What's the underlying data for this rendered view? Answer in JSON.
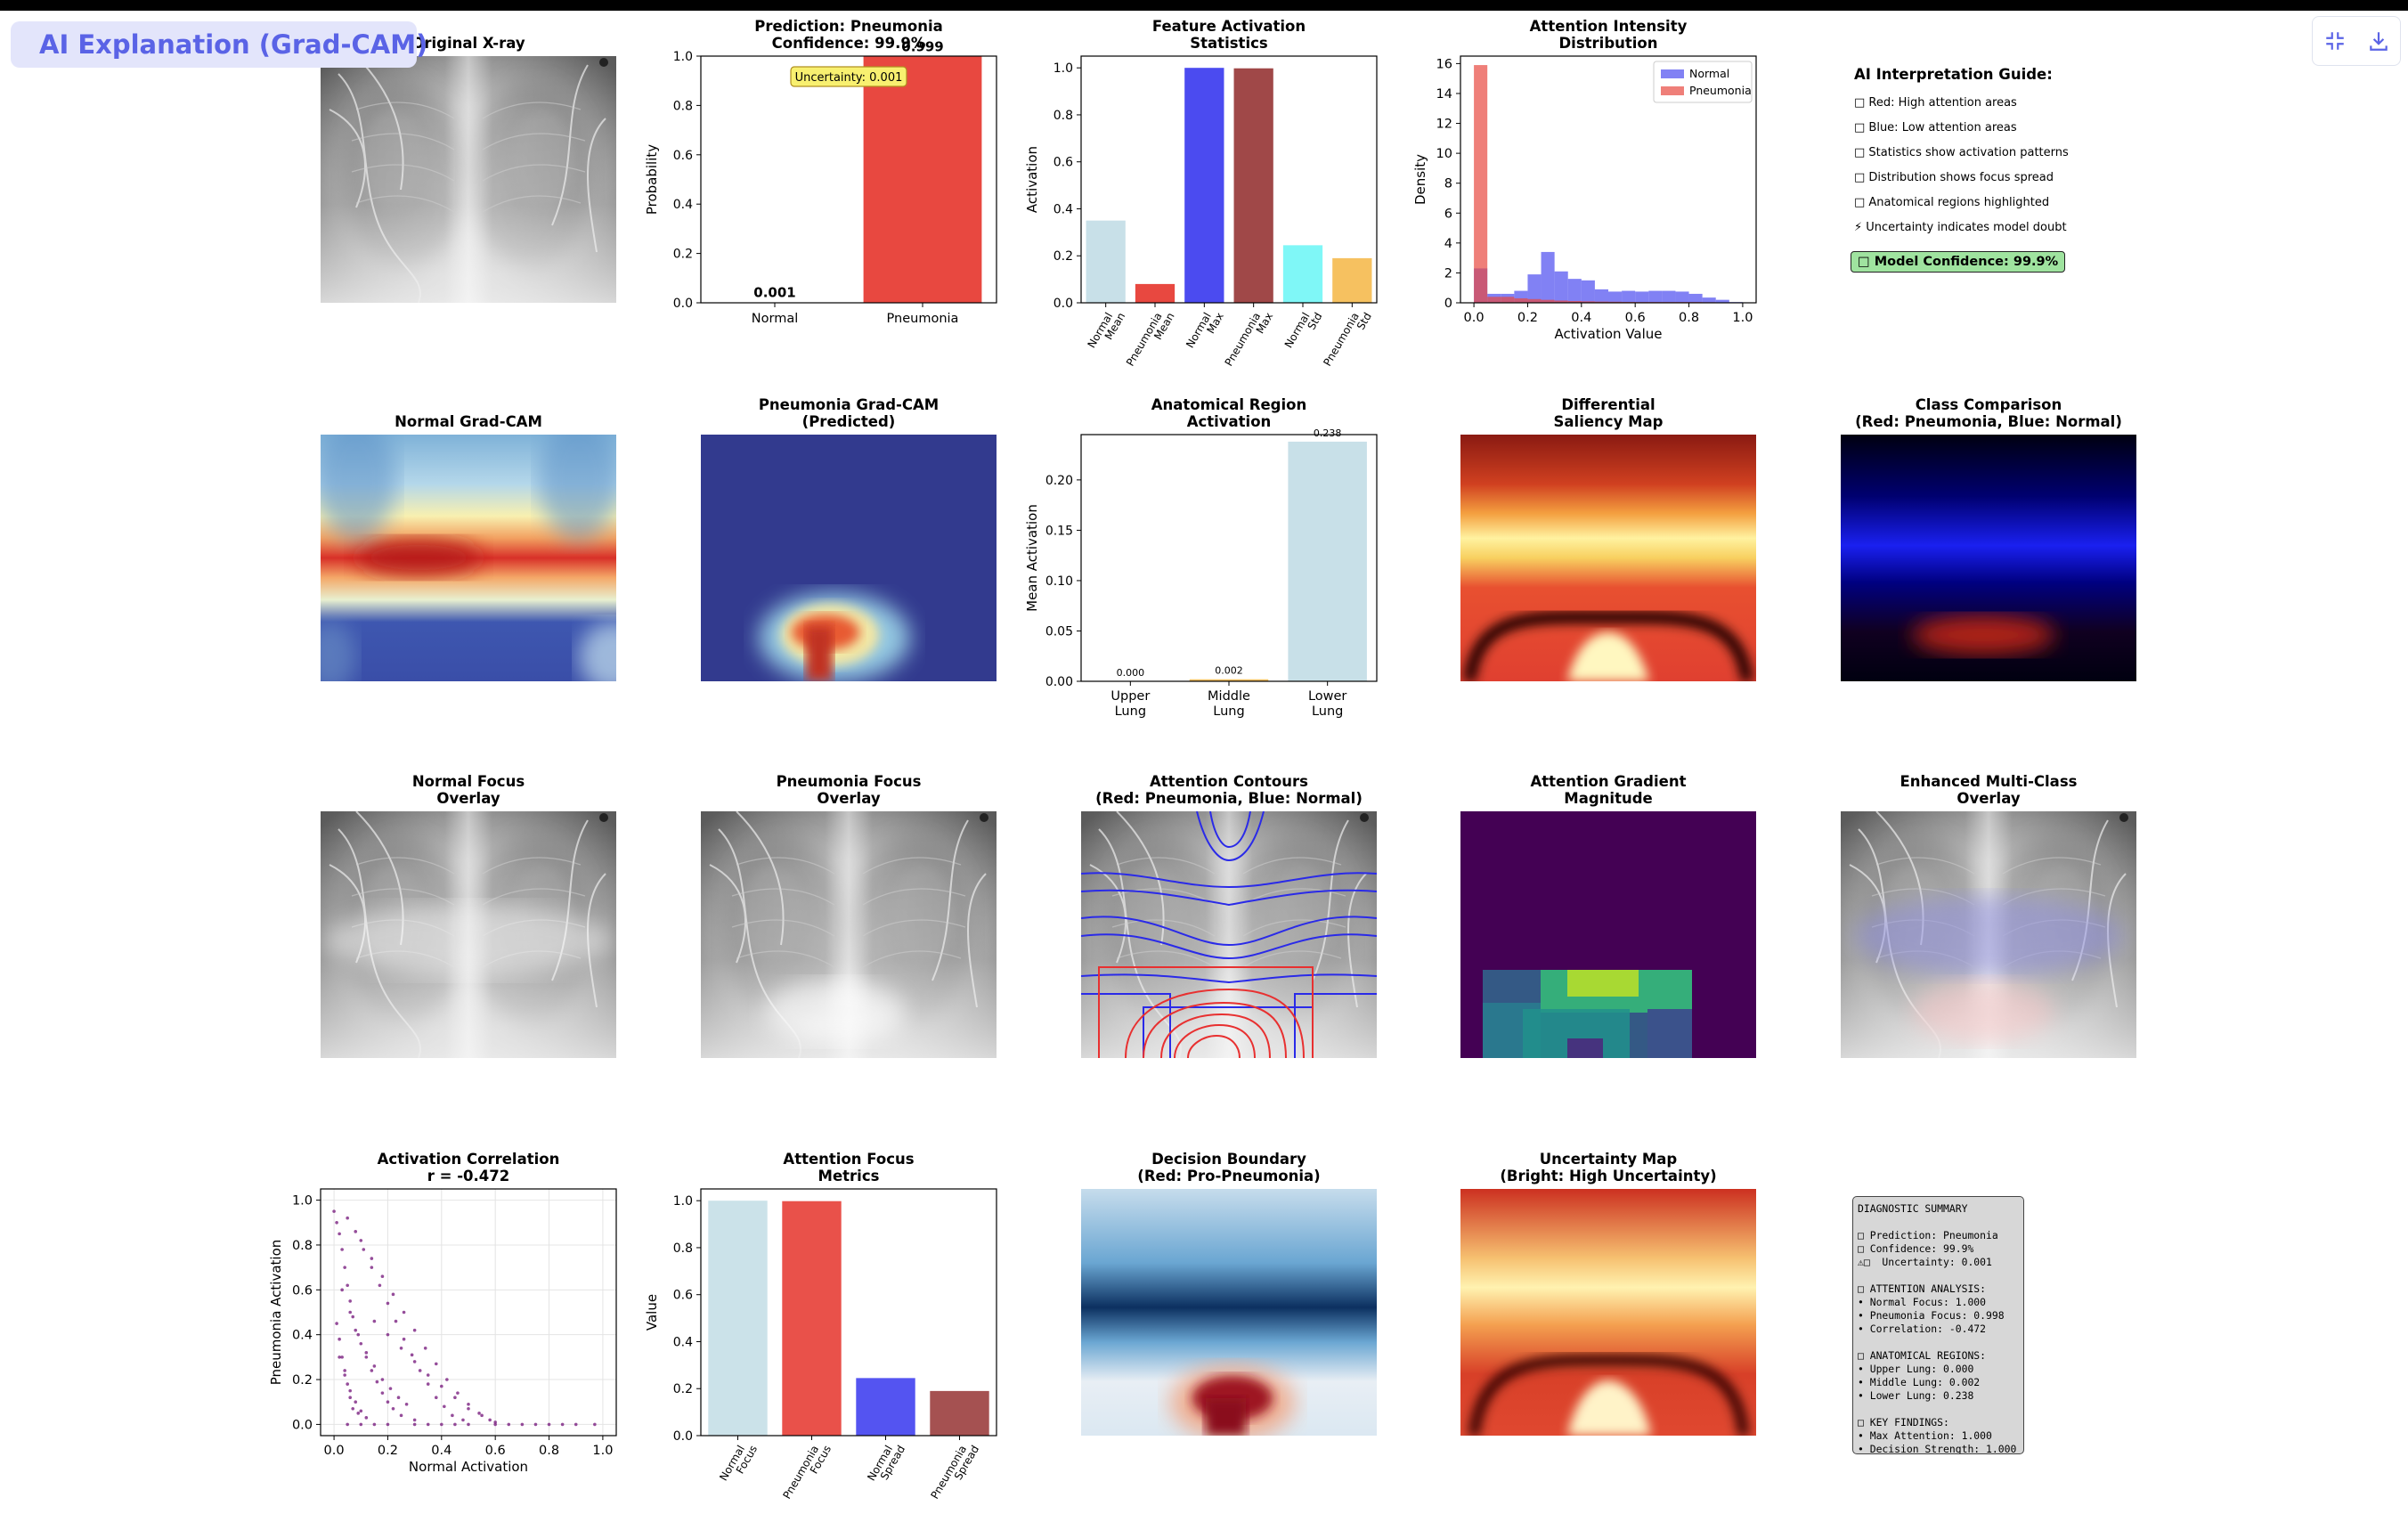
{
  "app": {
    "title": "AI Explanation (Grad-CAM)",
    "title_icon": "image-icon",
    "tools": [
      {
        "name": "exit-fullscreen-icon"
      },
      {
        "name": "download-icon"
      }
    ]
  },
  "colors": {
    "normal": "#4b4bf0",
    "pneumonia": "#e84840",
    "light_blue": "#c8e0e8",
    "dark_red": "#a04848",
    "cyan": "#7ff7f7",
    "orange": "#f6c160",
    "purple": "#7b2181"
  },
  "images": [
    {
      "id": "xray",
      "title": [
        "Original X-ray"
      ]
    },
    {
      "id": "normal-gradcam",
      "title": [
        "Normal Grad-CAM"
      ]
    },
    {
      "id": "pneumonia-gradcam",
      "title": [
        "Pneumonia Grad-CAM",
        "(Predicted)"
      ]
    },
    {
      "id": "diff-saliency",
      "title": [
        "Differential",
        "Saliency Map"
      ]
    },
    {
      "id": "class-comparison",
      "title": [
        "Class Comparison",
        "(Red: Pneumonia, Blue: Normal)"
      ]
    },
    {
      "id": "normal-overlay",
      "title": [
        "Normal Focus",
        "Overlay"
      ]
    },
    {
      "id": "pneumonia-overlay",
      "title": [
        "Pneumonia Focus",
        "Overlay"
      ]
    },
    {
      "id": "contours",
      "title": [
        "Attention Contours",
        "(Red: Pneumonia, Blue: Normal)"
      ]
    },
    {
      "id": "gradient",
      "title": [
        "Attention Gradient",
        "Magnitude"
      ]
    },
    {
      "id": "multiclass",
      "title": [
        "Enhanced Multi-Class",
        "Overlay"
      ]
    },
    {
      "id": "decision",
      "title": [
        "Decision Boundary",
        "(Red: Pro-Pneumonia)"
      ]
    },
    {
      "id": "uncertainty-map",
      "title": [
        "Uncertainty Map",
        "(Bright: High Uncertainty)"
      ]
    }
  ],
  "chart_data": [
    {
      "id": "prediction",
      "type": "bar",
      "title": [
        "Prediction: Pneumonia",
        "Confidence: 99.9%"
      ],
      "categories": [
        "Normal",
        "Pneumonia"
      ],
      "values": [
        0.001,
        0.999
      ],
      "value_labels": [
        "0.001",
        "0.999"
      ],
      "colors": [
        "#4b4bf0",
        "#e84840"
      ],
      "ylabel": "Probability",
      "xlabel": "",
      "ylim": [
        0,
        1.0
      ],
      "yticks": [
        "0.0",
        "0.2",
        "0.4",
        "0.6",
        "0.8",
        "1.0"
      ],
      "annotation": "Uncertainty: 0.001"
    },
    {
      "id": "feature-activation",
      "type": "bar",
      "title": [
        "Feature Activation",
        "Statistics"
      ],
      "categories": [
        [
          "Normal",
          "Mean"
        ],
        [
          "Pneumonia",
          "Mean"
        ],
        [
          "Normal",
          "Max"
        ],
        [
          "Pneumonia",
          "Max"
        ],
        [
          "Normal",
          "Std"
        ],
        [
          "Pneumonia",
          "Std"
        ]
      ],
      "values": [
        0.35,
        0.08,
        1.0,
        0.998,
        0.245,
        0.19
      ],
      "colors": [
        "#c8e0e8",
        "#e84840",
        "#4b4bf0",
        "#a04848",
        "#7ff7f7",
        "#f6c160"
      ],
      "ylabel": "Activation",
      "ylim": [
        0,
        1.05
      ],
      "yticks": [
        "0.0",
        "0.2",
        "0.4",
        "0.6",
        "0.8",
        "1.0"
      ]
    },
    {
      "id": "attention-intensity",
      "type": "bar",
      "title": [
        "Attention Intensity",
        "Distribution"
      ],
      "xlabel": "Activation Value",
      "ylabel": "Density",
      "xlim": [
        -0.05,
        1.05
      ],
      "ylim": [
        0,
        16.5
      ],
      "xticks": [
        "0.0",
        "0.2",
        "0.4",
        "0.6",
        "0.8",
        "1.0"
      ],
      "yticks": [
        "0",
        "2",
        "4",
        "6",
        "8",
        "10",
        "12",
        "14",
        "16"
      ],
      "legend": "top-right",
      "bin_width": 0.05,
      "series": [
        {
          "name": "Normal",
          "color": "#4b4bf0",
          "bin_starts": [
            0.0,
            0.05,
            0.1,
            0.15,
            0.2,
            0.25,
            0.3,
            0.35,
            0.4,
            0.45,
            0.5,
            0.55,
            0.6,
            0.65,
            0.7,
            0.75,
            0.8,
            0.85,
            0.9,
            0.95
          ],
          "values": [
            2.3,
            0.6,
            0.6,
            0.8,
            1.9,
            3.4,
            2.1,
            1.6,
            1.5,
            0.9,
            0.75,
            0.8,
            0.75,
            0.8,
            0.8,
            0.75,
            0.6,
            0.35,
            0.2,
            0.05
          ]
        },
        {
          "name": "Pneumonia",
          "color": "#e84840",
          "bin_starts": [
            0.0,
            0.05,
            0.1,
            0.15,
            0.2,
            0.25,
            0.3,
            0.35,
            0.4,
            0.45,
            0.5,
            0.55,
            0.6,
            0.65,
            0.7,
            0.75,
            0.8,
            0.85,
            0.9,
            0.95
          ],
          "values": [
            15.9,
            0.4,
            0.4,
            0.3,
            0.25,
            0.2,
            0.15,
            0.12,
            0.1,
            0.08,
            0.07,
            0.06,
            0.05,
            0.05,
            0.05,
            0.05,
            0.05,
            0.04,
            0.03,
            0.02
          ]
        }
      ]
    },
    {
      "id": "anatomical",
      "type": "bar",
      "title": [
        "Anatomical Region",
        "Activation"
      ],
      "categories": [
        [
          "Upper",
          "Lung"
        ],
        [
          "Middle",
          "Lung"
        ],
        [
          "Lower",
          "Lung"
        ]
      ],
      "values": [
        0.0,
        0.002,
        0.238
      ],
      "value_labels": [
        "0.000",
        "0.002",
        "0.238"
      ],
      "colors": [
        "#e84840",
        "#f6c160",
        "#c8e0e8"
      ],
      "ylabel": "Mean Activation",
      "ylim": [
        0,
        0.245
      ],
      "yticks": [
        "0.00",
        "0.05",
        "0.10",
        "0.15",
        "0.20"
      ]
    },
    {
      "id": "correlation",
      "type": "scatter",
      "title": [
        "Activation Correlation",
        "r = -0.472"
      ],
      "xlabel": "Normal Activation",
      "ylabel": "Pneumonia Activation",
      "xlim": [
        -0.05,
        1.05
      ],
      "ylim": [
        -0.05,
        1.05
      ],
      "xticks": [
        "0.0",
        "0.2",
        "0.4",
        "0.6",
        "0.8",
        "1.0"
      ],
      "yticks": [
        "0.0",
        "0.2",
        "0.4",
        "0.6",
        "0.8",
        "1.0"
      ],
      "grid": true,
      "color": "#7b2181",
      "points": [
        [
          0.0,
          0.95
        ],
        [
          0.01,
          0.9
        ],
        [
          0.02,
          0.85
        ],
        [
          0.03,
          0.78
        ],
        [
          0.04,
          0.7
        ],
        [
          0.05,
          0.62
        ],
        [
          0.06,
          0.55
        ],
        [
          0.07,
          0.48
        ],
        [
          0.08,
          0.42
        ],
        [
          0.1,
          0.36
        ],
        [
          0.12,
          0.3
        ],
        [
          0.14,
          0.24
        ],
        [
          0.16,
          0.19
        ],
        [
          0.18,
          0.14
        ],
        [
          0.2,
          0.1
        ],
        [
          0.22,
          0.07
        ],
        [
          0.25,
          0.04
        ],
        [
          0.3,
          0.02
        ],
        [
          0.05,
          0.92
        ],
        [
          0.08,
          0.86
        ],
        [
          0.11,
          0.78
        ],
        [
          0.14,
          0.7
        ],
        [
          0.17,
          0.62
        ],
        [
          0.2,
          0.54
        ],
        [
          0.23,
          0.46
        ],
        [
          0.26,
          0.38
        ],
        [
          0.29,
          0.31
        ],
        [
          0.32,
          0.24
        ],
        [
          0.35,
          0.18
        ],
        [
          0.38,
          0.12
        ],
        [
          0.41,
          0.08
        ],
        [
          0.44,
          0.04
        ],
        [
          0.48,
          0.02
        ],
        [
          0.1,
          0.82
        ],
        [
          0.14,
          0.74
        ],
        [
          0.18,
          0.66
        ],
        [
          0.22,
          0.58
        ],
        [
          0.26,
          0.5
        ],
        [
          0.3,
          0.42
        ],
        [
          0.34,
          0.34
        ],
        [
          0.38,
          0.27
        ],
        [
          0.42,
          0.2
        ],
        [
          0.46,
          0.14
        ],
        [
          0.5,
          0.09
        ],
        [
          0.54,
          0.05
        ],
        [
          0.58,
          0.02
        ],
        [
          0.03,
          0.6
        ],
        [
          0.06,
          0.5
        ],
        [
          0.09,
          0.4
        ],
        [
          0.12,
          0.32
        ],
        [
          0.15,
          0.26
        ],
        [
          0.18,
          0.2
        ],
        [
          0.21,
          0.16
        ],
        [
          0.24,
          0.12
        ],
        [
          0.27,
          0.09
        ],
        [
          0.02,
          0.3
        ],
        [
          0.04,
          0.22
        ],
        [
          0.06,
          0.15
        ],
        [
          0.08,
          0.1
        ],
        [
          0.1,
          0.06
        ],
        [
          0.12,
          0.03
        ],
        [
          0.15,
          0.46
        ],
        [
          0.2,
          0.4
        ],
        [
          0.25,
          0.34
        ],
        [
          0.3,
          0.28
        ],
        [
          0.35,
          0.22
        ],
        [
          0.4,
          0.17
        ],
        [
          0.45,
          0.12
        ],
        [
          0.5,
          0.07
        ],
        [
          0.55,
          0.04
        ],
        [
          0.6,
          0.01
        ],
        [
          0.01,
          0.45
        ],
        [
          0.02,
          0.38
        ],
        [
          0.03,
          0.3
        ],
        [
          0.04,
          0.24
        ],
        [
          0.05,
          0.18
        ],
        [
          0.06,
          0.12
        ],
        [
          0.07,
          0.07
        ],
        [
          0.09,
          0.05
        ],
        [
          0.1,
          0.0
        ],
        [
          0.2,
          0.0
        ],
        [
          0.3,
          0.0
        ],
        [
          0.4,
          0.0
        ],
        [
          0.5,
          0.0
        ],
        [
          0.6,
          0.0
        ],
        [
          0.7,
          0.0
        ],
        [
          0.8,
          0.0
        ],
        [
          0.9,
          0.0
        ],
        [
          0.97,
          0.0
        ],
        [
          0.05,
          0.0
        ],
        [
          0.15,
          0.0
        ],
        [
          0.35,
          0.0
        ],
        [
          0.45,
          0.0
        ],
        [
          0.65,
          0.0
        ],
        [
          0.75,
          0.0
        ],
        [
          0.85,
          0.0
        ]
      ]
    },
    {
      "id": "focus-metrics",
      "type": "bar",
      "title": [
        "Attention Focus",
        "Metrics"
      ],
      "categories": [
        [
          "Normal",
          "Focus"
        ],
        [
          "Pneumonia",
          "Focus"
        ],
        [
          "Normal",
          "Spread"
        ],
        [
          "Pneumonia",
          "Spread"
        ]
      ],
      "values": [
        1.0,
        0.998,
        0.245,
        0.19
      ],
      "colors": [
        "#c8e0e8",
        "#e84840",
        "#4b4bf0",
        "#a04848"
      ],
      "ylabel": "Value",
      "ylim": [
        0,
        1.05
      ],
      "yticks": [
        "0.0",
        "0.2",
        "0.4",
        "0.6",
        "0.8",
        "1.0"
      ]
    }
  ],
  "guide": {
    "title": "AI Interpretation Guide:",
    "lines": [
      "□ Red: High attention areas",
      "□ Blue: Low attention areas",
      "□ Statistics show activation patterns",
      "□ Distribution shows focus spread",
      "□ Anatomical regions highlighted",
      "⚡ Uncertainty indicates model doubt"
    ],
    "confidence": "□ Model Confidence: 99.9%"
  },
  "summary": {
    "text": "DIAGNOSTIC SUMMARY\n\n□ Prediction: Pneumonia\n□ Confidence: 99.9%\n⚠□  Uncertainty: 0.001\n\n□ ATTENTION ANALYSIS:\n• Normal Focus: 1.000\n• Pneumonia Focus: 0.998\n• Correlation: -0.472\n\n□ ANATOMICAL REGIONS:\n• Upper Lung: 0.000\n• Middle Lung: 0.002\n• Lower Lung: 0.238\n\n□ KEY FINDINGS:\n• Max Attention: 1.000\n• Decision Strength: 1.000"
  }
}
